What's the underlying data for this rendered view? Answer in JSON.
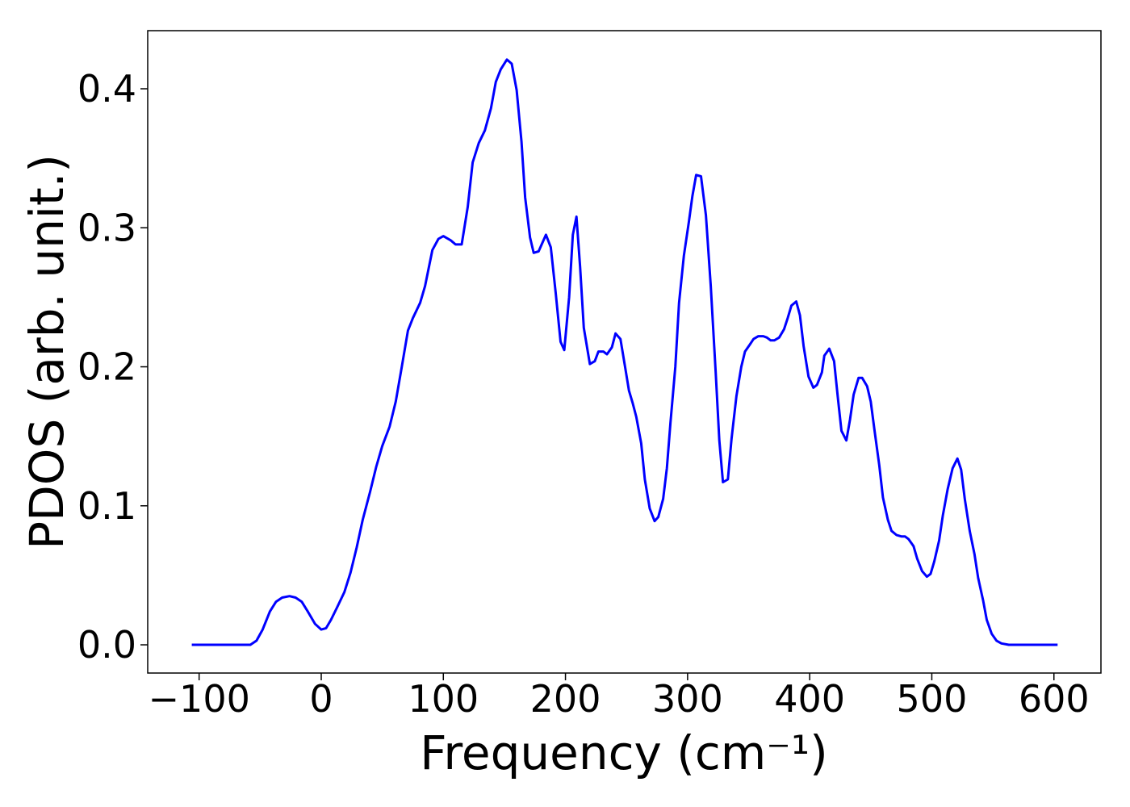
{
  "chart_data": {
    "type": "line",
    "xlabel": "Frequency (cm⁻¹)",
    "ylabel": "PDOS (arb. unit.)",
    "xlim": [
      -142.1,
      638.5
    ],
    "ylim": [
      -0.0203,
      0.4418
    ],
    "xticks": [
      {
        "value": -100,
        "label": "−100"
      },
      0,
      100,
      200,
      300,
      400,
      500,
      600
    ],
    "yticks": [
      {
        "value": 0,
        "label": "0.0"
      },
      0.1,
      0.2,
      0.3,
      0.4
    ],
    "series": [
      {
        "color": "#0000ff",
        "x": [
          -106,
          -58,
          -53,
          -48,
          -42,
          -37,
          -32,
          -26,
          -21,
          -16,
          -11,
          -5,
          0,
          4,
          8,
          13,
          19,
          24,
          29,
          34,
          40,
          45,
          50,
          56,
          61,
          66,
          71,
          75,
          81,
          85,
          91,
          96,
          100,
          106,
          110,
          115,
          120,
          124,
          129,
          134,
          139,
          143,
          147,
          152,
          156,
          160,
          164,
          167,
          171,
          174,
          178,
          184,
          188,
          192,
          196,
          199,
          203,
          206,
          209,
          212,
          215,
          220,
          224,
          227,
          231,
          234,
          238,
          241,
          245,
          249,
          252,
          255,
          258,
          262,
          265,
          269,
          273,
          276,
          280,
          283,
          286,
          290,
          293,
          297,
          301,
          304,
          307,
          311,
          315,
          319,
          323,
          326,
          329,
          333,
          336,
          340,
          344,
          347,
          351,
          354,
          358,
          362,
          365,
          368,
          371,
          375,
          379,
          382,
          385,
          389,
          392,
          395,
          399,
          403,
          406,
          410,
          412,
          416,
          420,
          423,
          426,
          430,
          433,
          436,
          440,
          443,
          447,
          450,
          453,
          457,
          460,
          464,
          467,
          471,
          475,
          478,
          481,
          485,
          488,
          492,
          496,
          499,
          502,
          506,
          509,
          513,
          517,
          521,
          524,
          527,
          531,
          535,
          538,
          542,
          545,
          549,
          553,
          557,
          563,
          603
        ],
        "values": [
          0,
          0,
          0.003,
          0.011,
          0.024,
          0.031,
          0.034,
          0.035,
          0.034,
          0.031,
          0.024,
          0.015,
          0.011,
          0.012,
          0.018,
          0.027,
          0.038,
          0.052,
          0.07,
          0.09,
          0.11,
          0.128,
          0.143,
          0.157,
          0.175,
          0.2,
          0.226,
          0.235,
          0.246,
          0.258,
          0.284,
          0.292,
          0.294,
          0.291,
          0.288,
          0.288,
          0.315,
          0.347,
          0.361,
          0.37,
          0.386,
          0.405,
          0.414,
          0.421,
          0.418,
          0.399,
          0.362,
          0.322,
          0.293,
          0.282,
          0.283,
          0.295,
          0.286,
          0.253,
          0.218,
          0.212,
          0.25,
          0.295,
          0.308,
          0.272,
          0.228,
          0.202,
          0.204,
          0.211,
          0.211,
          0.209,
          0.214,
          0.224,
          0.22,
          0.199,
          0.183,
          0.174,
          0.164,
          0.145,
          0.119,
          0.098,
          0.089,
          0.092,
          0.105,
          0.127,
          0.16,
          0.2,
          0.246,
          0.28,
          0.304,
          0.323,
          0.338,
          0.337,
          0.309,
          0.258,
          0.196,
          0.147,
          0.117,
          0.119,
          0.148,
          0.179,
          0.2,
          0.211,
          0.216,
          0.22,
          0.222,
          0.222,
          0.221,
          0.219,
          0.219,
          0.221,
          0.227,
          0.235,
          0.244,
          0.247,
          0.237,
          0.215,
          0.193,
          0.185,
          0.187,
          0.196,
          0.208,
          0.213,
          0.204,
          0.178,
          0.154,
          0.147,
          0.162,
          0.18,
          0.192,
          0.192,
          0.186,
          0.175,
          0.155,
          0.129,
          0.106,
          0.09,
          0.082,
          0.079,
          0.078,
          0.078,
          0.076,
          0.071,
          0.062,
          0.053,
          0.049,
          0.051,
          0.06,
          0.075,
          0.093,
          0.112,
          0.127,
          0.134,
          0.126,
          0.105,
          0.082,
          0.065,
          0.048,
          0.032,
          0.018,
          0.008,
          0.003,
          0.001,
          0,
          0
        ]
      }
    ]
  }
}
